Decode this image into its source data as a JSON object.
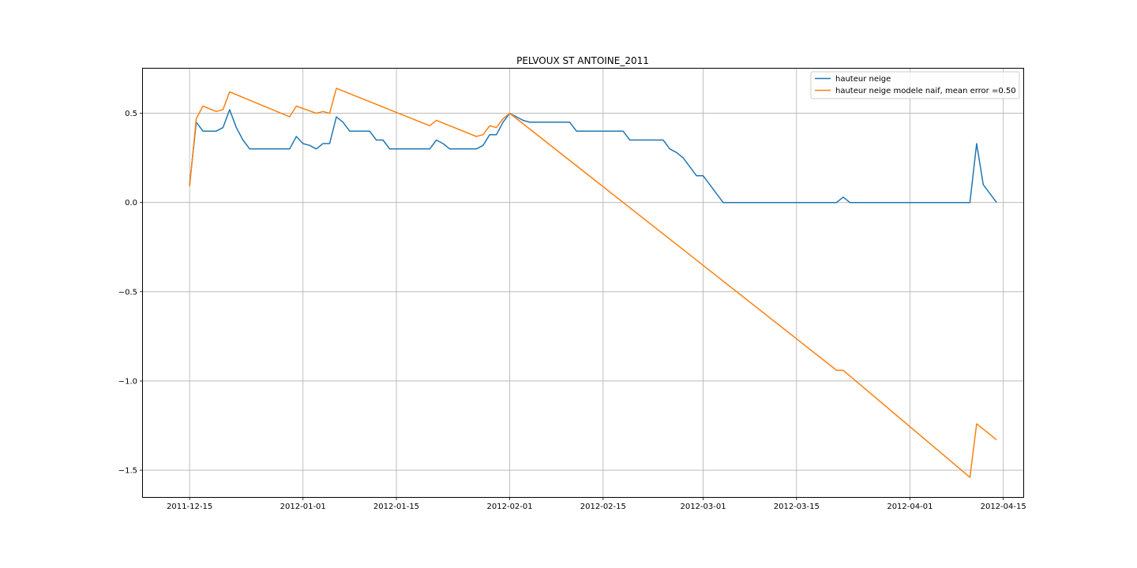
{
  "chart_data": {
    "type": "line",
    "title": "PELVOUX ST ANTOINE_2011",
    "xlabel": "",
    "ylabel": "",
    "x_ticks": [
      "2011-12-15",
      "2012-01-01",
      "2012-01-15",
      "2012-02-01",
      "2012-02-15",
      "2012-03-01",
      "2012-03-15",
      "2012-04-01",
      "2012-04-15"
    ],
    "y_ticks": [
      0.5,
      0.0,
      -0.5,
      -1.0,
      -1.5
    ],
    "y_tick_labels": [
      "0.5",
      "0.0",
      "−0.5",
      "−1.0",
      "−1.5"
    ],
    "xlim": [
      "2011-12-08",
      "2012-04-18"
    ],
    "ylim": [
      -1.65,
      0.75
    ],
    "grid": true,
    "legend_position": "top-right",
    "series": [
      {
        "name": "hauteur neige",
        "color": "#1f77b4",
        "points": [
          [
            "2011-12-15",
            0.1
          ],
          [
            "2011-12-16",
            0.45
          ],
          [
            "2011-12-17",
            0.4
          ],
          [
            "2011-12-18",
            0.4
          ],
          [
            "2011-12-19",
            0.4
          ],
          [
            "2011-12-20",
            0.42
          ],
          [
            "2011-12-21",
            0.52
          ],
          [
            "2011-12-22",
            0.42
          ],
          [
            "2011-12-23",
            0.35
          ],
          [
            "2011-12-24",
            0.3
          ],
          [
            "2011-12-25",
            0.3
          ],
          [
            "2011-12-26",
            0.3
          ],
          [
            "2011-12-27",
            0.3
          ],
          [
            "2011-12-28",
            0.3
          ],
          [
            "2011-12-29",
            0.3
          ],
          [
            "2011-12-30",
            0.3
          ],
          [
            "2011-12-31",
            0.37
          ],
          [
            "2012-01-01",
            0.33
          ],
          [
            "2012-01-02",
            0.32
          ],
          [
            "2012-01-03",
            0.3
          ],
          [
            "2012-01-04",
            0.33
          ],
          [
            "2012-01-05",
            0.33
          ],
          [
            "2012-01-06",
            0.48
          ],
          [
            "2012-01-07",
            0.45
          ],
          [
            "2012-01-08",
            0.4
          ],
          [
            "2012-01-09",
            0.4
          ],
          [
            "2012-01-10",
            0.4
          ],
          [
            "2012-01-11",
            0.4
          ],
          [
            "2012-01-12",
            0.35
          ],
          [
            "2012-01-13",
            0.35
          ],
          [
            "2012-01-14",
            0.3
          ],
          [
            "2012-01-15",
            0.3
          ],
          [
            "2012-01-16",
            0.3
          ],
          [
            "2012-01-17",
            0.3
          ],
          [
            "2012-01-18",
            0.3
          ],
          [
            "2012-01-19",
            0.3
          ],
          [
            "2012-01-20",
            0.3
          ],
          [
            "2012-01-21",
            0.35
          ],
          [
            "2012-01-22",
            0.33
          ],
          [
            "2012-01-23",
            0.3
          ],
          [
            "2012-01-24",
            0.3
          ],
          [
            "2012-01-25",
            0.3
          ],
          [
            "2012-01-26",
            0.3
          ],
          [
            "2012-01-27",
            0.3
          ],
          [
            "2012-01-28",
            0.32
          ],
          [
            "2012-01-29",
            0.38
          ],
          [
            "2012-01-30",
            0.38
          ],
          [
            "2012-01-31",
            0.45
          ],
          [
            "2012-02-01",
            0.5
          ],
          [
            "2012-02-02",
            0.48
          ],
          [
            "2012-02-03",
            0.46
          ],
          [
            "2012-02-04",
            0.45
          ],
          [
            "2012-02-05",
            0.45
          ],
          [
            "2012-02-06",
            0.45
          ],
          [
            "2012-02-07",
            0.45
          ],
          [
            "2012-02-08",
            0.45
          ],
          [
            "2012-02-09",
            0.45
          ],
          [
            "2012-02-10",
            0.45
          ],
          [
            "2012-02-11",
            0.4
          ],
          [
            "2012-02-12",
            0.4
          ],
          [
            "2012-02-13",
            0.4
          ],
          [
            "2012-02-14",
            0.4
          ],
          [
            "2012-02-15",
            0.4
          ],
          [
            "2012-02-16",
            0.4
          ],
          [
            "2012-02-17",
            0.4
          ],
          [
            "2012-02-18",
            0.4
          ],
          [
            "2012-02-19",
            0.35
          ],
          [
            "2012-02-20",
            0.35
          ],
          [
            "2012-02-21",
            0.35
          ],
          [
            "2012-02-22",
            0.35
          ],
          [
            "2012-02-23",
            0.35
          ],
          [
            "2012-02-24",
            0.35
          ],
          [
            "2012-02-25",
            0.3
          ],
          [
            "2012-02-26",
            0.28
          ],
          [
            "2012-02-27",
            0.25
          ],
          [
            "2012-02-28",
            0.2
          ],
          [
            "2012-02-29",
            0.15
          ],
          [
            "2012-03-01",
            0.15
          ],
          [
            "2012-03-02",
            0.1
          ],
          [
            "2012-03-03",
            0.05
          ],
          [
            "2012-03-04",
            0.0
          ],
          [
            "2012-03-05",
            0.0
          ],
          [
            "2012-03-21",
            0.0
          ],
          [
            "2012-03-22",
            0.03
          ],
          [
            "2012-03-23",
            0.0
          ],
          [
            "2012-03-24",
            0.0
          ],
          [
            "2012-04-10",
            0.0
          ],
          [
            "2012-04-11",
            0.33
          ],
          [
            "2012-04-12",
            0.1
          ],
          [
            "2012-04-14",
            0.0
          ]
        ]
      },
      {
        "name": "hauteur neige modele naif, mean error =0.50",
        "color": "#ff7f0e",
        "points": [
          [
            "2011-12-15",
            0.09
          ],
          [
            "2011-12-16",
            0.47
          ],
          [
            "2011-12-17",
            0.54
          ],
          [
            "2011-12-19",
            0.51
          ],
          [
            "2011-12-20",
            0.52
          ],
          [
            "2011-12-21",
            0.62
          ],
          [
            "2011-12-30",
            0.48
          ],
          [
            "2011-12-31",
            0.54
          ],
          [
            "2012-01-03",
            0.5
          ],
          [
            "2012-01-04",
            0.51
          ],
          [
            "2012-01-05",
            0.5
          ],
          [
            "2012-01-06",
            0.64
          ],
          [
            "2012-01-20",
            0.43
          ],
          [
            "2012-01-21",
            0.46
          ],
          [
            "2012-01-27",
            0.37
          ],
          [
            "2012-01-28",
            0.38
          ],
          [
            "2012-01-29",
            0.43
          ],
          [
            "2012-01-30",
            0.42
          ],
          [
            "2012-01-31",
            0.47
          ],
          [
            "2012-02-01",
            0.5
          ],
          [
            "2012-03-21",
            -0.94
          ],
          [
            "2012-03-22",
            -0.94
          ],
          [
            "2012-04-10",
            -1.54
          ],
          [
            "2012-04-11",
            -1.24
          ],
          [
            "2012-04-14",
            -1.33
          ]
        ]
      }
    ]
  }
}
